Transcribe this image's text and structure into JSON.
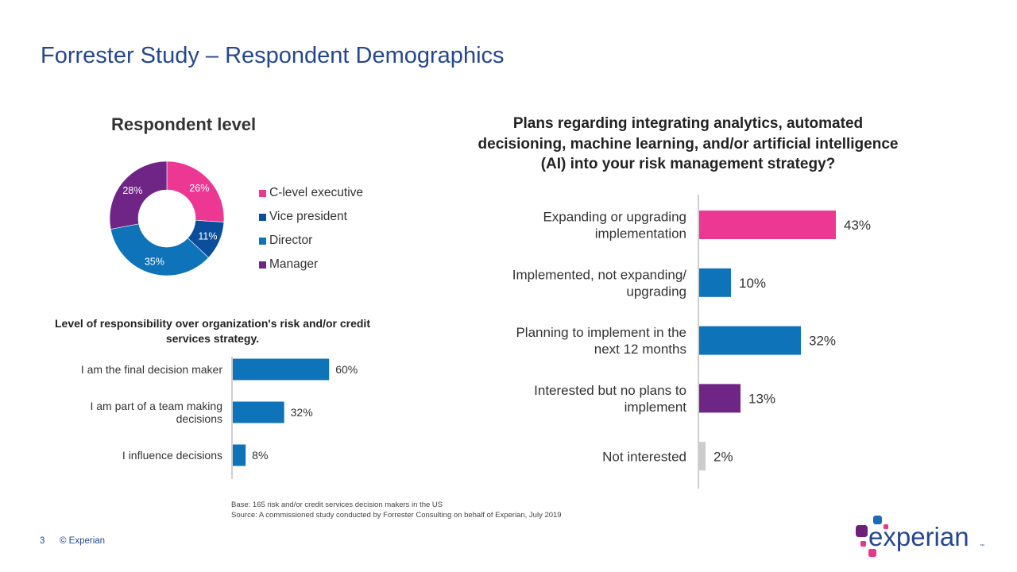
{
  "page": {
    "title": "Forrester Study – Respondent Demographics",
    "page_number": "3",
    "copyright": "© Experian",
    "footnote_base": "Base: 165 risk and/or credit services decision makers in the US",
    "footnote_source": "Source: A commissioned study conducted by Forrester Consulting on behalf of Experian, July 2019",
    "logo": {
      "text": "experian",
      "trademark": "™",
      "text_color": "#26478d",
      "dot_colors": [
        "#1d4f91",
        "#6d2077",
        "#e63888",
        "#0f70b7"
      ]
    }
  },
  "chart_data": [
    {
      "type": "pie",
      "variant": "donut",
      "title": "Respondent level",
      "categories": [
        "C-level executive",
        "Vice president",
        "Director",
        "Manager"
      ],
      "values": [
        26,
        11,
        35,
        28
      ],
      "labels": [
        "26%",
        "11%",
        "35%",
        "28%"
      ],
      "colors": [
        "#ec3892",
        "#0b4f9c",
        "#0f73b9",
        "#6e2585"
      ],
      "legend": "right"
    },
    {
      "type": "bar",
      "orientation": "horizontal",
      "title": "Level of responsibility over organization's risk and/or credit services strategy.",
      "categories": [
        "I am the final decision maker",
        "I am part of a team making decisions",
        "I influence decisions"
      ],
      "category_lines": [
        [
          "I am the final decision maker"
        ],
        [
          "I am part of a team making",
          "decisions"
        ],
        [
          "I influence decisions"
        ]
      ],
      "values": [
        60,
        32,
        8
      ],
      "labels": [
        "60%",
        "32%",
        "8%"
      ],
      "colors": [
        "#0f73b9",
        "#0f73b9",
        "#0f73b9"
      ],
      "xlim": [
        0,
        100
      ],
      "grid": false
    },
    {
      "type": "bar",
      "orientation": "horizontal",
      "title": "Plans regarding integrating analytics, automated decisioning, machine learning, and/or artificial intelligence (AI) into your risk management strategy?",
      "categories": [
        "Expanding or upgrading implementation",
        "Implemented, not expanding/ upgrading",
        "Planning to implement in the next 12 months",
        "Interested but no plans to implement",
        "Not interested"
      ],
      "category_lines": [
        [
          "Expanding or upgrading",
          "implementation"
        ],
        [
          "Implemented, not expanding/",
          "upgrading"
        ],
        [
          "Planning to implement in the",
          "next 12 months"
        ],
        [
          "Interested but no plans to",
          "implement"
        ],
        [
          "Not interested"
        ]
      ],
      "values": [
        43,
        10,
        32,
        13,
        2
      ],
      "labels": [
        "43%",
        "10%",
        "32%",
        "13%",
        "2%"
      ],
      "colors": [
        "#ec3892",
        "#0f73b9",
        "#0f73b9",
        "#6e2585",
        "#cccccc"
      ],
      "xlim": [
        0,
        100
      ],
      "grid": false
    }
  ]
}
